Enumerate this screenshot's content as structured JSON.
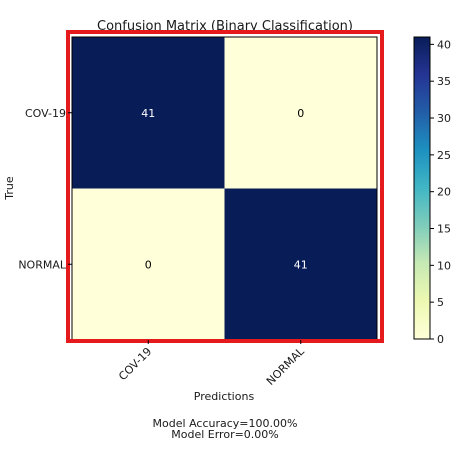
{
  "chart_data": {
    "type": "heatmap",
    "title": "Confusion Matrix (Binary Classification)",
    "xlabel": "Predictions",
    "ylabel": "True",
    "x_categories": [
      "COV-19",
      "NORMAL"
    ],
    "y_categories": [
      "COV-19",
      "NORMAL"
    ],
    "values": [
      [
        41,
        0
      ],
      [
        0,
        41
      ]
    ],
    "colormap": "YlGnBu",
    "colorbar": {
      "min": 0,
      "max": 41,
      "ticks": [
        0,
        5,
        10,
        15,
        20,
        25,
        30,
        35,
        40
      ]
    },
    "annotations": [
      "Model Accuracy=100.00%",
      "Model Error=0.00%"
    ],
    "highlight_color": "#e41a1c"
  }
}
